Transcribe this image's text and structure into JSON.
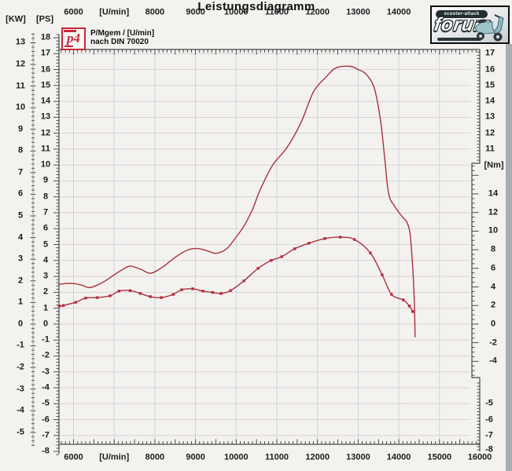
{
  "title": "Leistungsdiagramm",
  "legend": {
    "logo_text": "p4",
    "line1": "P/Mgem / [U/min]",
    "line2": "nach DIN 70020"
  },
  "watermark": {
    "band": "scooter-attack",
    "name": "forum"
  },
  "axis_labels": {
    "kw": "[KW]",
    "ps": "[PS]",
    "nm": "[Nm]",
    "rpm_unit": "[U/min]"
  },
  "colors": {
    "curve": "#a8323f",
    "marker": "#b92b40",
    "grid_vertical": "#c9d1da",
    "grid_horizontal": "#d8cfd6",
    "axis": "#4a4a4a",
    "tick": "#3a3a3a",
    "paper": "#f3f2ef",
    "legend_red": "#c4273b"
  },
  "chart_data": {
    "type": "line",
    "title": "Leistungsdiagramm",
    "xlabel": "[U/min]",
    "grid": true,
    "x_axis": {
      "top_tick_rpm": [
        6000,
        7000,
        8000,
        9000,
        10000,
        11000,
        12000,
        13000,
        14000
      ],
      "top_tick_labels": [
        "6000",
        "[U/min]",
        "8000",
        "9000",
        "10000",
        "11000",
        "12000",
        "13000",
        "14000"
      ],
      "bottom_tick_rpm": [
        6000,
        7000,
        8000,
        9000,
        10000,
        11000,
        12000,
        13000,
        14000,
        15000,
        16000
      ],
      "bottom_tick_labels": [
        "6000",
        "[U/min]",
        "8000",
        "9000",
        "10000",
        "11000",
        "12000",
        "13000",
        "14000",
        "15000",
        "16000"
      ],
      "range_rpm": [
        5600,
        16000
      ],
      "minor_step_rpm": 100
    },
    "y_axes": {
      "kw": {
        "label": "[KW]",
        "ticks": [
          13,
          12,
          11,
          10,
          9,
          8,
          7,
          6,
          5,
          4,
          3,
          2,
          1,
          0,
          -1,
          -2,
          -3,
          -4,
          -5
        ]
      },
      "ps": {
        "label": "[PS]",
        "ticks": [
          18,
          17,
          16,
          15,
          14,
          13,
          12,
          11,
          10,
          9,
          8,
          7,
          6,
          5,
          4,
          3,
          2,
          1,
          0,
          -1,
          -2,
          -3,
          -4,
          -5,
          -6,
          -7,
          -8
        ]
      },
      "ps_right_top": {
        "ticks": [
          17,
          16,
          15,
          14,
          13,
          12,
          11
        ]
      },
      "ps_right_bottom": {
        "ticks": [
          -5,
          -6,
          -7,
          -8
        ]
      },
      "nm": {
        "label": "[Nm]",
        "ticks": [
          14,
          12,
          10,
          8,
          6,
          4,
          2,
          0,
          -2,
          -4
        ]
      }
    },
    "series": [
      {
        "name": "P",
        "unit": "PS",
        "marker": false,
        "points": [
          [
            5650,
            2.5
          ],
          [
            5800,
            2.55
          ],
          [
            6000,
            2.55
          ],
          [
            6200,
            2.45
          ],
          [
            6400,
            2.3
          ],
          [
            6700,
            2.6
          ],
          [
            7000,
            3.1
          ],
          [
            7250,
            3.5
          ],
          [
            7400,
            3.65
          ],
          [
            7650,
            3.45
          ],
          [
            7900,
            3.2
          ],
          [
            8200,
            3.6
          ],
          [
            8500,
            4.2
          ],
          [
            8800,
            4.65
          ],
          [
            9050,
            4.75
          ],
          [
            9300,
            4.6
          ],
          [
            9500,
            4.45
          ],
          [
            9750,
            4.7
          ],
          [
            9950,
            5.3
          ],
          [
            10200,
            6.2
          ],
          [
            10400,
            7.2
          ],
          [
            10600,
            8.5
          ],
          [
            10900,
            10.0
          ],
          [
            11250,
            11.1
          ],
          [
            11600,
            12.7
          ],
          [
            11900,
            14.6
          ],
          [
            12200,
            15.5
          ],
          [
            12450,
            16.1
          ],
          [
            12800,
            16.2
          ],
          [
            13000,
            16.0
          ],
          [
            13200,
            15.7
          ],
          [
            13400,
            14.8
          ],
          [
            13550,
            12.8
          ],
          [
            13650,
            10.5
          ],
          [
            13750,
            8.2
          ],
          [
            13900,
            7.4
          ],
          [
            14100,
            6.7
          ],
          [
            14200,
            6.4
          ],
          [
            14280,
            5.6
          ],
          [
            14340,
            3.6
          ],
          [
            14380,
            1.6
          ],
          [
            14400,
            -0.8
          ]
        ]
      },
      {
        "name": "Mgem",
        "unit": "Nm",
        "marker": true,
        "points": [
          [
            5650,
            1.95
          ],
          [
            5750,
            2.0
          ],
          [
            6050,
            2.35
          ],
          [
            6300,
            2.8
          ],
          [
            6580,
            2.85
          ],
          [
            6900,
            3.05
          ],
          [
            7120,
            3.55
          ],
          [
            7390,
            3.6
          ],
          [
            7640,
            3.3
          ],
          [
            7890,
            2.95
          ],
          [
            8160,
            2.85
          ],
          [
            8450,
            3.2
          ],
          [
            8660,
            3.7
          ],
          [
            8930,
            3.8
          ],
          [
            9180,
            3.55
          ],
          [
            9420,
            3.4
          ],
          [
            9630,
            3.3
          ],
          [
            9860,
            3.6
          ],
          [
            10190,
            4.65
          ],
          [
            10540,
            6.0
          ],
          [
            10860,
            6.85
          ],
          [
            11120,
            7.25
          ],
          [
            11440,
            8.1
          ],
          [
            11790,
            8.7
          ],
          [
            12180,
            9.2
          ],
          [
            12560,
            9.35
          ],
          [
            12910,
            9.1
          ],
          [
            13300,
            7.65
          ],
          [
            13590,
            5.3
          ],
          [
            13820,
            3.2
          ],
          [
            14110,
            2.6
          ],
          [
            14260,
            1.95
          ],
          [
            14340,
            1.35
          ]
        ]
      }
    ]
  }
}
